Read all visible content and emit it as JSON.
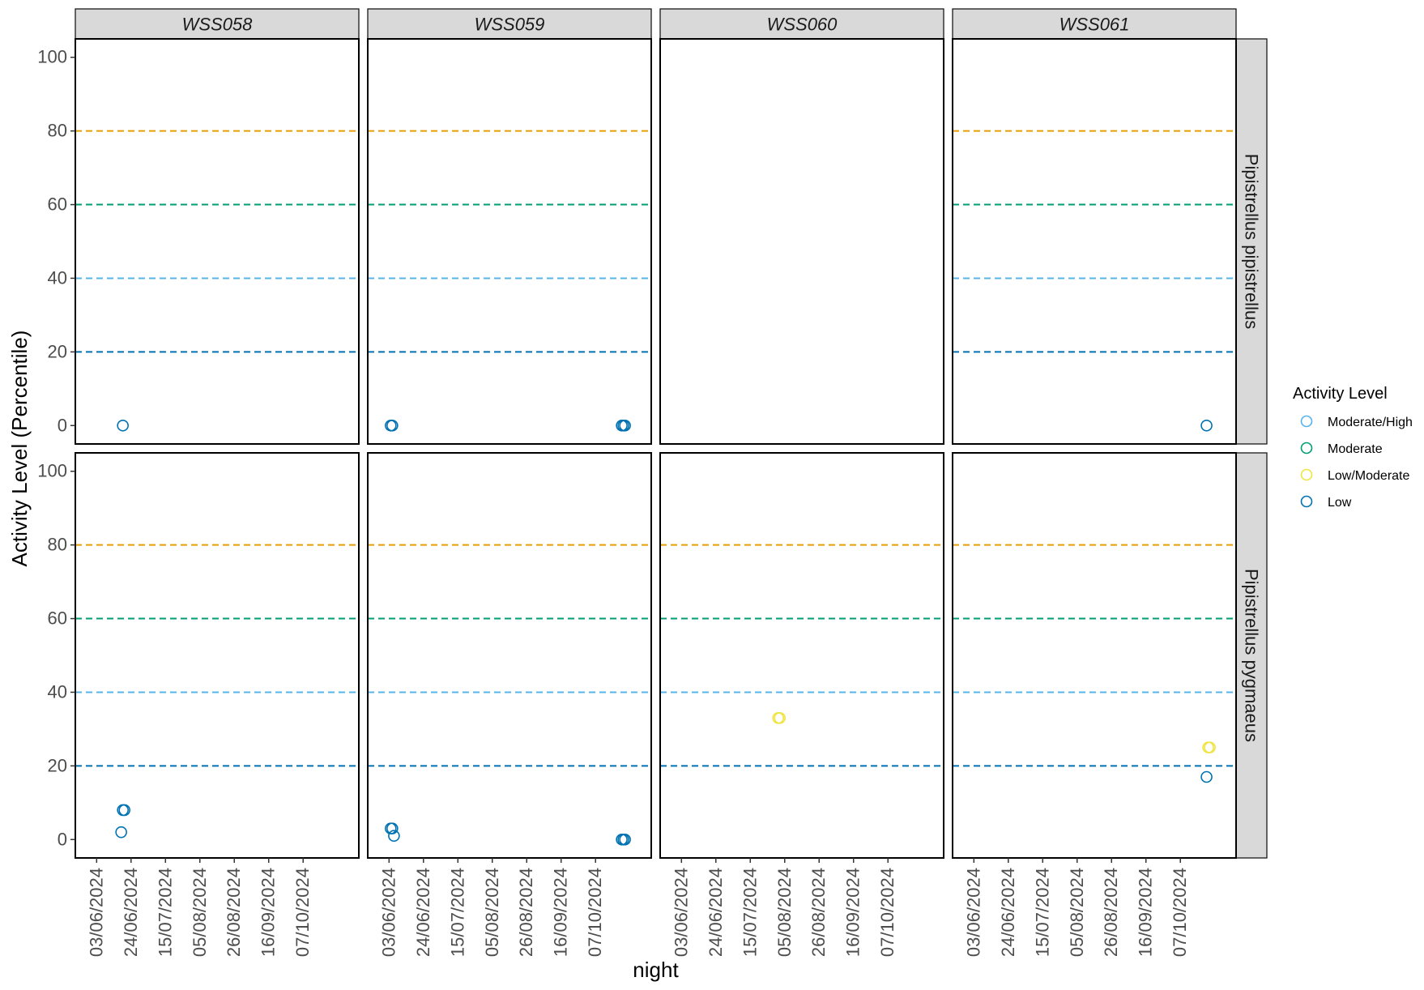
{
  "chart_data": {
    "type": "scatter",
    "ylabel": "Activity Level (Percentile)",
    "xlabel": "night",
    "ylim": [
      -5,
      105
    ],
    "y_ticks": [
      0,
      20,
      40,
      60,
      80,
      100
    ],
    "xlim": [
      "2024-05-21",
      "2024-11-10"
    ],
    "x_ticks": [
      "03/06/2024",
      "24/06/2024",
      "15/07/2024",
      "05/08/2024",
      "26/08/2024",
      "16/09/2024",
      "07/10/2024"
    ],
    "grid": false,
    "legend": {
      "title": "Activity Level",
      "placement": "right",
      "entries": [
        {
          "label": "Moderate/High",
          "color": "#56B4E9"
        },
        {
          "label": "Moderate",
          "color": "#009E73"
        },
        {
          "label": "Low/Moderate",
          "color": "#F0E442"
        },
        {
          "label": "Low",
          "color": "#0072B2"
        }
      ]
    },
    "thresholds": [
      {
        "y": 20,
        "color": "#0072B2"
      },
      {
        "y": 40,
        "color": "#56B4E9"
      },
      {
        "y": 60,
        "color": "#009E73"
      },
      {
        "y": 80,
        "color": "#E69F00"
      }
    ],
    "facet_columns": [
      "WSS058",
      "WSS059",
      "WSS060",
      "WSS061"
    ],
    "facet_rows": [
      "Pipistrellus pipistrellus",
      "Pipistrellus pygmaeus"
    ],
    "panels": [
      {
        "site": "WSS058",
        "species": "Pipistrellus pipistrellus",
        "show_thresholds": true,
        "points": [
          {
            "x": "2024-06-19",
            "y": 0,
            "level": "Low"
          }
        ]
      },
      {
        "site": "WSS059",
        "species": "Pipistrellus pipistrellus",
        "show_thresholds": true,
        "points": [
          {
            "x": "2024-06-04",
            "y": 0,
            "level": "Low"
          },
          {
            "x": "2024-06-05",
            "y": 0,
            "level": "Low"
          },
          {
            "x": "2024-10-23",
            "y": 0,
            "level": "Low"
          },
          {
            "x": "2024-10-24",
            "y": 0,
            "level": "Low"
          },
          {
            "x": "2024-10-25",
            "y": 0,
            "level": "Low"
          }
        ]
      },
      {
        "site": "WSS060",
        "species": "Pipistrellus pipistrellus",
        "show_thresholds": false,
        "points": []
      },
      {
        "site": "WSS061",
        "species": "Pipistrellus pipistrellus",
        "show_thresholds": true,
        "points": [
          {
            "x": "2024-10-23",
            "y": 0,
            "level": "Low"
          }
        ]
      },
      {
        "site": "WSS058",
        "species": "Pipistrellus pygmaeus",
        "show_thresholds": true,
        "points": [
          {
            "x": "2024-06-19",
            "y": 8,
            "level": "Low"
          },
          {
            "x": "2024-06-20",
            "y": 8,
            "level": "Low"
          },
          {
            "x": "2024-06-18",
            "y": 2,
            "level": "Low"
          }
        ]
      },
      {
        "site": "WSS059",
        "species": "Pipistrellus pygmaeus",
        "show_thresholds": true,
        "points": [
          {
            "x": "2024-06-04",
            "y": 3,
            "level": "Low"
          },
          {
            "x": "2024-06-05",
            "y": 3,
            "level": "Low"
          },
          {
            "x": "2024-06-06",
            "y": 1,
            "level": "Low"
          },
          {
            "x": "2024-10-23",
            "y": 0,
            "level": "Low"
          },
          {
            "x": "2024-10-24",
            "y": 0,
            "level": "Low"
          },
          {
            "x": "2024-10-25",
            "y": 0,
            "level": "Low"
          }
        ]
      },
      {
        "site": "WSS060",
        "species": "Pipistrellus pygmaeus",
        "show_thresholds": true,
        "points": [
          {
            "x": "2024-08-01",
            "y": 33,
            "level": "Low/Moderate"
          },
          {
            "x": "2024-08-02",
            "y": 33,
            "level": "Low/Moderate"
          }
        ]
      },
      {
        "site": "WSS061",
        "species": "Pipistrellus pygmaeus",
        "show_thresholds": true,
        "points": [
          {
            "x": "2024-10-24",
            "y": 25,
            "level": "Low/Moderate"
          },
          {
            "x": "2024-10-25",
            "y": 25,
            "level": "Low/Moderate"
          },
          {
            "x": "2024-10-23",
            "y": 17,
            "level": "Low"
          }
        ]
      }
    ]
  }
}
